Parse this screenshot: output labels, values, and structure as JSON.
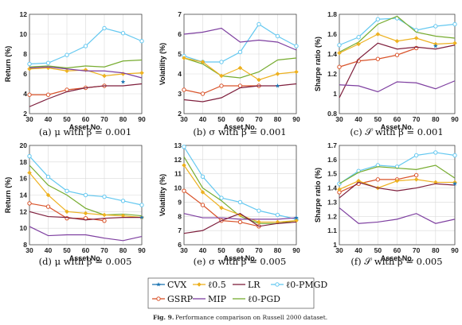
{
  "figure_caption": {
    "label": "Fig. 9.",
    "text": "Performance comparison on Russell 2000 dataset."
  },
  "legend": [
    "CVX",
    "ℓ0.5",
    "LR",
    "ℓ0-PMGD",
    "GSRP",
    "MIP",
    "ℓ0-PGD"
  ],
  "series_colors": {
    "CVX": "#1f77b4",
    "l05": "#edb120",
    "LR": "#7e1e3c",
    "PMGD": "#64c8f0",
    "GSRP": "#d9532a",
    "MIP": "#7e3fa0",
    "PGD": "#77ac30"
  },
  "chart_data": [
    {
      "type": "line",
      "caption": "(a) μ with β = 0.001",
      "xlabel": "Asset No.",
      "ylabel": "Return (%)",
      "x": [
        30,
        40,
        50,
        60,
        70,
        80,
        90
      ],
      "xlim": [
        30,
        90
      ],
      "ylim": [
        2,
        12
      ],
      "yticks": [
        2,
        4,
        6,
        8,
        10,
        12
      ],
      "grid": true,
      "series": [
        {
          "name": "ℓ0-PMGD",
          "key": "PMGD",
          "values": [
            7.0,
            7.1,
            7.9,
            8.8,
            10.6,
            10.1,
            9.3
          ]
        },
        {
          "name": "ℓ0-PGD",
          "key": "PGD",
          "values": [
            6.7,
            6.8,
            6.6,
            6.8,
            6.7,
            7.3,
            7.4
          ]
        },
        {
          "name": "ℓ0.5",
          "key": "l05",
          "values": [
            6.5,
            6.6,
            6.3,
            6.4,
            5.8,
            6.0,
            6.1
          ]
        },
        {
          "name": "MIP",
          "key": "MIP",
          "values": [
            6.6,
            6.7,
            6.5,
            6.3,
            6.3,
            6.1,
            5.6
          ]
        },
        {
          "name": "GSRP",
          "key": "GSRP",
          "values": [
            3.9,
            3.9,
            4.4,
            4.6,
            4.8,
            null,
            null
          ]
        },
        {
          "name": "LR",
          "key": "LR",
          "values": [
            2.7,
            3.5,
            4.2,
            4.6,
            4.8,
            4.8,
            5.0
          ]
        },
        {
          "name": "CVX",
          "key": "CVX",
          "values": [
            null,
            null,
            null,
            null,
            null,
            5.2,
            null
          ],
          "markers_only": true
        }
      ]
    },
    {
      "type": "line",
      "caption": "(b) σ with β = 0.001",
      "xlabel": "Asset No.",
      "ylabel": "Volatility (%)",
      "x": [
        30,
        40,
        50,
        60,
        70,
        80,
        90
      ],
      "xlim": [
        30,
        90
      ],
      "ylim": [
        2,
        7
      ],
      "yticks": [
        2,
        3,
        4,
        5,
        6,
        7
      ],
      "grid": true,
      "series": [
        {
          "name": "ℓ0-PMGD",
          "key": "PMGD",
          "values": [
            4.9,
            4.6,
            4.6,
            5.1,
            6.5,
            5.9,
            5.4
          ]
        },
        {
          "name": "MIP",
          "key": "MIP",
          "values": [
            6.0,
            6.1,
            6.3,
            5.6,
            5.7,
            5.6,
            5.2
          ]
        },
        {
          "name": "ℓ0-PGD",
          "key": "PGD",
          "values": [
            4.8,
            4.5,
            3.9,
            3.8,
            4.1,
            4.7,
            4.8
          ]
        },
        {
          "name": "ℓ0.5",
          "key": "l05",
          "values": [
            4.8,
            4.6,
            3.9,
            4.3,
            3.7,
            4.0,
            4.1
          ]
        },
        {
          "name": "GSRP",
          "key": "GSRP",
          "values": [
            3.2,
            3.0,
            3.4,
            3.4,
            3.4,
            null,
            null
          ]
        },
        {
          "name": "LR",
          "key": "LR",
          "values": [
            2.7,
            2.6,
            2.8,
            3.3,
            3.4,
            3.4,
            3.5
          ]
        },
        {
          "name": "CVX",
          "key": "CVX",
          "values": [
            null,
            null,
            null,
            null,
            null,
            3.4,
            null
          ],
          "markers_only": true
        }
      ]
    },
    {
      "type": "line",
      "caption": "(c) 𝒮 with β = 0.001",
      "xlabel": "Asset No.",
      "ylabel": "Sharpe ratio (%)",
      "x": [
        30,
        40,
        50,
        60,
        70,
        80,
        90
      ],
      "xlim": [
        30,
        90
      ],
      "ylim": [
        0.8,
        1.8
      ],
      "yticks": [
        0.8,
        1.0,
        1.2,
        1.4,
        1.6,
        1.8
      ],
      "ytick_labels": [
        "0.8",
        "1",
        "1.2",
        "1.4",
        "1.6",
        "1.8"
      ],
      "grid": true,
      "series": [
        {
          "name": "ℓ0-PMGD",
          "key": "PMGD",
          "values": [
            1.49,
            1.57,
            1.75,
            1.76,
            1.64,
            1.68,
            1.7
          ]
        },
        {
          "name": "ℓ0-PGD",
          "key": "PGD",
          "values": [
            1.42,
            1.52,
            1.7,
            1.78,
            1.62,
            1.58,
            1.56
          ]
        },
        {
          "name": "ℓ0.5",
          "key": "l05",
          "values": [
            1.41,
            1.5,
            1.6,
            1.53,
            1.56,
            1.5,
            1.51
          ]
        },
        {
          "name": "GSRP",
          "key": "GSRP",
          "values": [
            1.27,
            1.33,
            1.35,
            1.39,
            1.46,
            null,
            null
          ]
        },
        {
          "name": "LR",
          "key": "LR",
          "values": [
            0.96,
            1.35,
            1.51,
            1.45,
            1.47,
            1.45,
            1.49
          ]
        },
        {
          "name": "MIP",
          "key": "MIP",
          "values": [
            1.09,
            1.08,
            1.02,
            1.12,
            1.11,
            1.05,
            1.13
          ]
        },
        {
          "name": "CVX",
          "key": "CVX",
          "values": [
            null,
            null,
            null,
            null,
            null,
            1.48,
            null
          ],
          "markers_only": true
        }
      ]
    },
    {
      "type": "line",
      "caption": "(d) μ with β = 0.005",
      "xlabel": "Asset No.",
      "ylabel": "Return (%)",
      "x": [
        30,
        40,
        50,
        60,
        70,
        80,
        90
      ],
      "xlim": [
        30,
        90
      ],
      "ylim": [
        8,
        20
      ],
      "yticks": [
        8,
        10,
        12,
        14,
        16,
        18,
        20
      ],
      "grid": true,
      "series": [
        {
          "name": "ℓ0-PMGD",
          "key": "PMGD",
          "values": [
            18.7,
            16.2,
            14.5,
            14.0,
            13.8,
            13.3,
            12.8
          ]
        },
        {
          "name": "ℓ0-PGD",
          "key": "PGD",
          "values": [
            17.6,
            15.2,
            14.0,
            12.4,
            11.6,
            11.7,
            11.5
          ]
        },
        {
          "name": "ℓ0.5",
          "key": "l05",
          "values": [
            16.7,
            14.0,
            12.0,
            11.8,
            11.6,
            11.5,
            11.3
          ]
        },
        {
          "name": "GSRP",
          "key": "GSRP",
          "values": [
            13.0,
            12.6,
            11.2,
            11.2,
            10.9,
            null,
            null
          ]
        },
        {
          "name": "LR",
          "key": "LR",
          "values": [
            12.0,
            11.4,
            11.3,
            11.0,
            11.2,
            11.3,
            11.3
          ]
        },
        {
          "name": "MIP",
          "key": "MIP",
          "values": [
            10.2,
            9.1,
            9.2,
            9.2,
            8.8,
            8.5,
            9.0
          ]
        },
        {
          "name": "CVX",
          "key": "CVX",
          "values": [
            null,
            null,
            null,
            null,
            null,
            null,
            11.3
          ],
          "markers_only": true
        }
      ]
    },
    {
      "type": "line",
      "caption": "(e) σ with β = 0.005",
      "xlabel": "Asset No.",
      "ylabel": "Volatility (%)",
      "x": [
        30,
        40,
        50,
        60,
        70,
        80,
        90
      ],
      "xlim": [
        30,
        90
      ],
      "ylim": [
        6,
        13
      ],
      "yticks": [
        6,
        7,
        8,
        9,
        10,
        11,
        12,
        13
      ],
      "grid": true,
      "series": [
        {
          "name": "ℓ0-PMGD",
          "key": "PMGD",
          "values": [
            12.9,
            10.8,
            9.3,
            9.0,
            8.4,
            8.1,
            7.8
          ]
        },
        {
          "name": "ℓ0-PGD",
          "key": "PGD",
          "values": [
            12.2,
            10.0,
            9.1,
            8.0,
            7.5,
            7.5,
            7.7
          ]
        },
        {
          "name": "ℓ0.5",
          "key": "l05",
          "values": [
            11.6,
            9.7,
            8.6,
            8.1,
            7.6,
            7.6,
            7.7
          ]
        },
        {
          "name": "GSRP",
          "key": "GSRP",
          "values": [
            9.8,
            8.8,
            7.7,
            7.6,
            7.3,
            null,
            null
          ]
        },
        {
          "name": "MIP",
          "key": "MIP",
          "values": [
            8.2,
            7.9,
            7.9,
            7.8,
            7.8,
            7.8,
            7.9
          ]
        },
        {
          "name": "LR",
          "key": "LR",
          "values": [
            6.8,
            7.0,
            7.7,
            8.2,
            7.3,
            7.5,
            7.6
          ]
        },
        {
          "name": "CVX",
          "key": "CVX",
          "values": [
            null,
            null,
            null,
            null,
            null,
            null,
            7.9
          ],
          "markers_only": true
        }
      ]
    },
    {
      "type": "line",
      "caption": "(f) 𝒮 with β = 0.005",
      "xlabel": "Asset No.",
      "ylabel": "Sharpe ratio (%)",
      "x": [
        30,
        40,
        50,
        60,
        70,
        80,
        90
      ],
      "xlim": [
        30,
        90
      ],
      "ylim": [
        1.0,
        1.7
      ],
      "yticks": [
        1.0,
        1.1,
        1.2,
        1.3,
        1.4,
        1.5,
        1.6,
        1.7
      ],
      "ytick_labels": [
        "1",
        "1.1",
        "1.2",
        "1.3",
        "1.4",
        "1.5",
        "1.6",
        "1.7"
      ],
      "grid": true,
      "series": [
        {
          "name": "ℓ0-PMGD",
          "key": "PMGD",
          "values": [
            1.43,
            1.52,
            1.56,
            1.55,
            1.63,
            1.65,
            1.63
          ]
        },
        {
          "name": "ℓ0-PGD",
          "key": "PGD",
          "values": [
            1.43,
            1.51,
            1.55,
            1.54,
            1.53,
            1.56,
            1.47
          ]
        },
        {
          "name": "GSRP",
          "key": "GSRP",
          "values": [
            1.37,
            1.43,
            1.46,
            1.46,
            1.49,
            null,
            null
          ]
        },
        {
          "name": "ℓ0.5",
          "key": "l05",
          "values": [
            1.39,
            1.45,
            1.4,
            1.45,
            1.46,
            1.44,
            1.44
          ]
        },
        {
          "name": "LR",
          "key": "LR",
          "values": [
            1.33,
            1.44,
            1.4,
            1.38,
            1.4,
            1.43,
            1.42
          ]
        },
        {
          "name": "MIP",
          "key": "MIP",
          "values": [
            1.26,
            1.15,
            1.16,
            1.18,
            1.22,
            1.15,
            1.18
          ]
        },
        {
          "name": "CVX",
          "key": "CVX",
          "values": [
            null,
            null,
            null,
            null,
            null,
            null,
            1.43
          ],
          "markers_only": true
        }
      ]
    }
  ]
}
